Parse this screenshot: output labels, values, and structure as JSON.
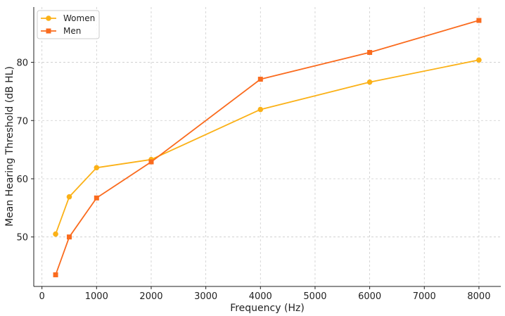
{
  "chart_data": {
    "type": "line",
    "title": "",
    "xlabel": "Frequency (Hz)",
    "ylabel": "Mean Hearing Threshold (dB HL)",
    "xlim": [
      -150,
      8400
    ],
    "ylim": [
      41.5,
      89.5
    ],
    "xticks": [
      0,
      1000,
      2000,
      3000,
      4000,
      5000,
      6000,
      7000,
      8000
    ],
    "yticks": [
      50,
      60,
      70,
      80
    ],
    "grid": true,
    "legend_position": "top-left",
    "series": [
      {
        "name": "Women",
        "color": "#FBB117",
        "marker": "circle",
        "x": [
          250,
          500,
          1000,
          2000,
          4000,
          6000,
          8000
        ],
        "y": [
          50.5,
          56.9,
          61.9,
          63.3,
          71.9,
          76.6,
          80.4
        ]
      },
      {
        "name": "Men",
        "color": "#FA6B1E",
        "marker": "square",
        "x": [
          250,
          500,
          1000,
          2000,
          4000,
          6000,
          8000
        ],
        "y": [
          43.5,
          50.0,
          56.7,
          62.9,
          77.1,
          81.7,
          87.2
        ]
      }
    ]
  }
}
